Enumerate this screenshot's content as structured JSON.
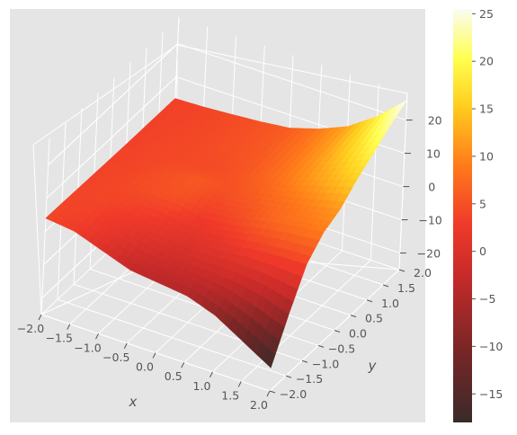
{
  "chart_data": {
    "type": "surface3d",
    "xlabel": "x",
    "ylabel": "y",
    "zlabel": "",
    "x_ticks": [
      "−2.0",
      "−1.5",
      "−1.0",
      "−0.5",
      "0.0",
      "0.5",
      "1.0",
      "1.5",
      "2.0"
    ],
    "y_ticks": [
      "−2.0",
      "−1.5",
      "−1.0",
      "−0.5",
      "0.0",
      "0.5",
      "1.0",
      "1.5",
      "2.0"
    ],
    "z_ticks": [
      "−20",
      "−10",
      "0",
      "10",
      "20"
    ],
    "x_range": [
      -2,
      2
    ],
    "y_range": [
      -2,
      2
    ],
    "z_range": [
      -25,
      28
    ],
    "surface": {
      "x": [
        -2,
        -1.5,
        -1,
        -0.5,
        0,
        0.5,
        1,
        1.5,
        2
      ],
      "y": [
        -2,
        -1.5,
        -1,
        -0.5,
        0,
        0.5,
        1,
        1.5,
        2
      ],
      "z_rows_by_y": [
        [
          4.0,
          3.0,
          0.0,
          -3.0,
          -4.0,
          -5.0,
          -8.0,
          -13.0,
          -18.0
        ],
        [
          3.9,
          3.5,
          1.8,
          -0.2,
          -1.4,
          -1.6,
          -2.1,
          -3.8,
          -6.5
        ],
        [
          3.8,
          4.0,
          3.5,
          2.5,
          1.0,
          1.6,
          2.9,
          3.6,
          3.9
        ],
        [
          3.7,
          4.1,
          4.9,
          5.1,
          3.3,
          4.4,
          6.6,
          8.0,
          9.0
        ],
        [
          3.6,
          4.0,
          4.9,
          5.8,
          4.9,
          6.0,
          7.8,
          9.5,
          11.4
        ],
        [
          3.5,
          4.0,
          4.3,
          4.4,
          5.4,
          7.3,
          10.0,
          12.8,
          15.8
        ],
        [
          3.5,
          3.9,
          4.4,
          4.9,
          5.7,
          7.9,
          11.0,
          15.0,
          19.4
        ],
        [
          3.5,
          3.8,
          4.4,
          5.0,
          6.0,
          8.4,
          11.7,
          16.8,
          23.0
        ],
        [
          3.5,
          3.8,
          4.4,
          5.1,
          6.1,
          8.7,
          12.3,
          18.2,
          26.0
        ]
      ]
    },
    "colormap": "hot",
    "colorbar": {
      "min": -18,
      "max": 25.5,
      "ticks": [
        "−15",
        "−10",
        "−5",
        "0",
        "5",
        "10",
        "15",
        "20",
        "25"
      ]
    },
    "style": "ggplot",
    "grid": true
  }
}
